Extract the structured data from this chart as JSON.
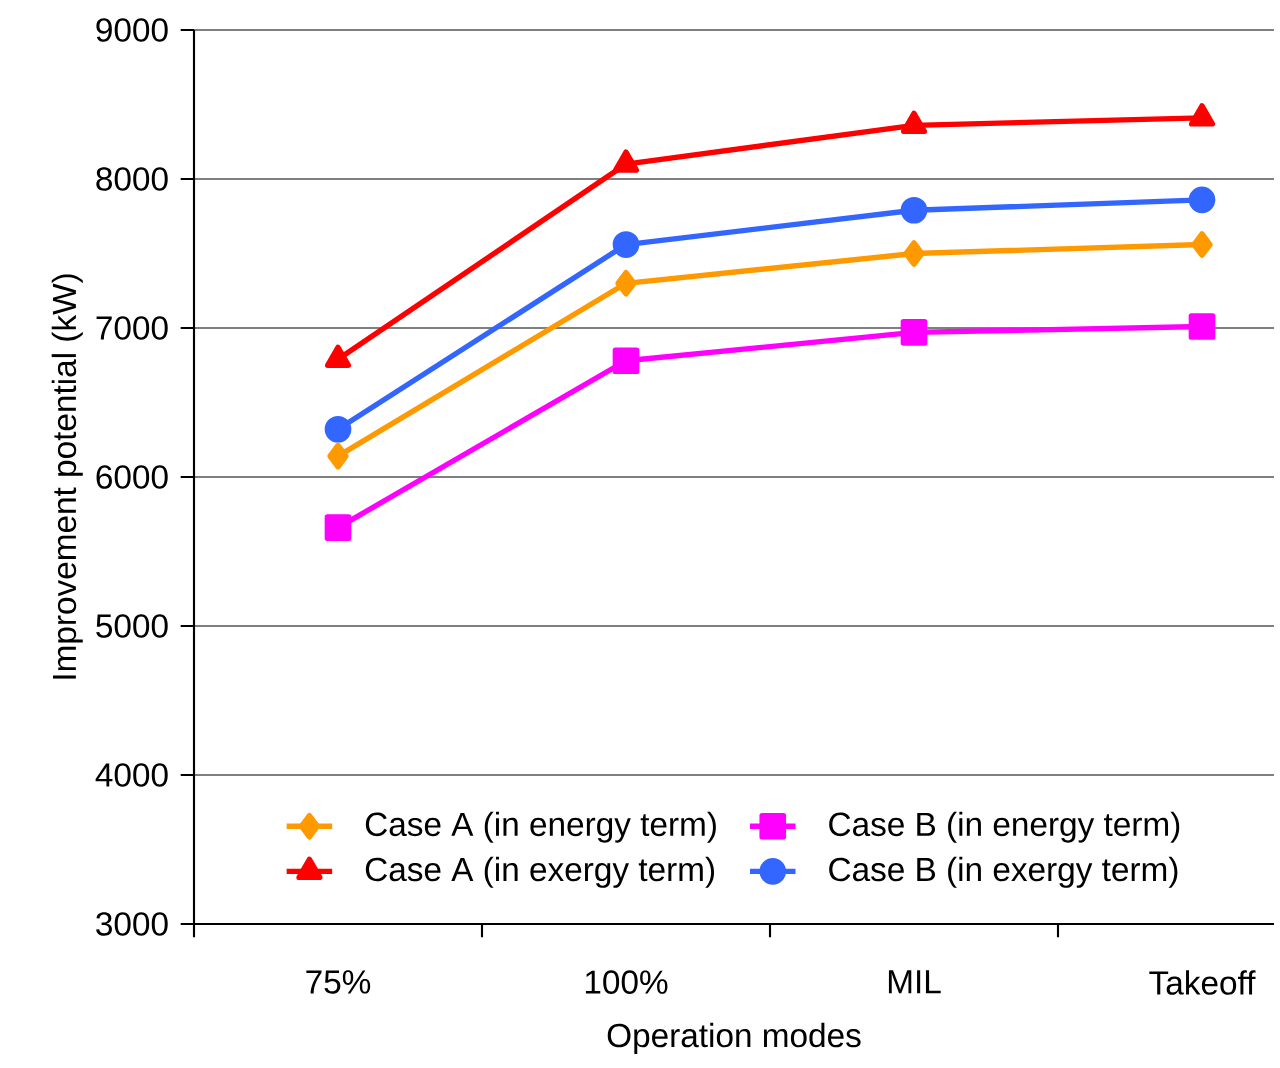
{
  "chart_data": {
    "type": "line",
    "xlabel": "Operation modes",
    "ylabel": "Improvement potential (kW)",
    "categories": [
      "75%",
      "100%",
      "MIL",
      "Takeoff"
    ],
    "series": [
      {
        "name": "Case A (in energy term)",
        "color": "#ff9900",
        "marker": "diamond",
        "values": [
          6140,
          7300,
          7500,
          7560
        ]
      },
      {
        "name": "Case B (in energy term)",
        "color": "#ff00ff",
        "marker": "square",
        "values": [
          5660,
          6780,
          6970,
          7010
        ]
      },
      {
        "name": "Case A (in exergy term)",
        "color": "#ff0000",
        "marker": "triangle",
        "values": [
          6790,
          8100,
          8360,
          8410
        ]
      },
      {
        "name": "Case B (in exergy term)",
        "color": "#3366ff",
        "marker": "circle",
        "values": [
          6320,
          7560,
          7790,
          7860
        ]
      }
    ],
    "ylim": [
      3000,
      9000
    ],
    "yticks": [
      3000,
      4000,
      5000,
      6000,
      7000,
      8000,
      9000
    ],
    "grid": "y",
    "legend": "bottom"
  }
}
